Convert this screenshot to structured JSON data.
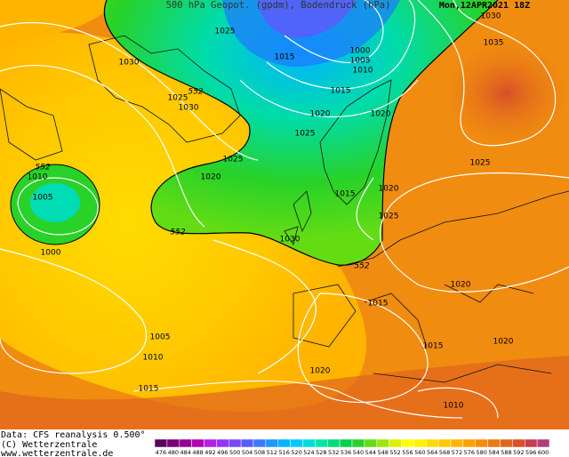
{
  "title": "500 hPa Geopot. (gpdm), Bodendruck (hPa)",
  "date": "Mon,12APR2021 18Z",
  "isobar_labels": [
    "1030",
    "1035",
    "1025",
    "1015",
    "1000",
    "1005",
    "1010",
    "1030",
    "1025",
    "552",
    "1030",
    "1015",
    "1020",
    "1020",
    "1025",
    "1025",
    "552",
    "1010",
    "1020",
    "1005",
    "1025",
    "1015",
    "1020",
    "1025",
    "552",
    "1030",
    "1000",
    "552",
    "1020",
    "1015",
    "1005",
    "1020",
    "1015",
    "1010",
    "1020",
    "1015",
    "1010"
  ],
  "footer": [
    "Data: CFS reanalysis 0.500°",
    "(C) Wetterzentrale",
    "www.wetterzentrale.de"
  ],
  "colorbar": {
    "ticks": [
      476,
      480,
      484,
      488,
      492,
      496,
      500,
      504,
      508,
      512,
      516,
      520,
      524,
      528,
      532,
      536,
      540,
      544,
      548,
      552,
      556,
      560,
      564,
      568,
      572,
      576,
      580,
      584,
      588,
      592,
      596,
      600
    ],
    "colors": [
      "#5a005a",
      "#780078",
      "#960096",
      "#b400b4",
      "#b41ee6",
      "#9632ff",
      "#7846ff",
      "#5a5aff",
      "#3c78ff",
      "#1e96ff",
      "#00b4ff",
      "#00c8ff",
      "#00dcdc",
      "#00e6aa",
      "#00dc78",
      "#00d246",
      "#28d228",
      "#64dc14",
      "#a0e60a",
      "#dcf000",
      "#ffff00",
      "#fff000",
      "#ffdc00",
      "#ffc800",
      "#ffb400",
      "#ffa000",
      "#f58c0a",
      "#eb7814",
      "#e1641e",
      "#d75028",
      "#c83c50",
      "#b43c78"
    ]
  }
}
